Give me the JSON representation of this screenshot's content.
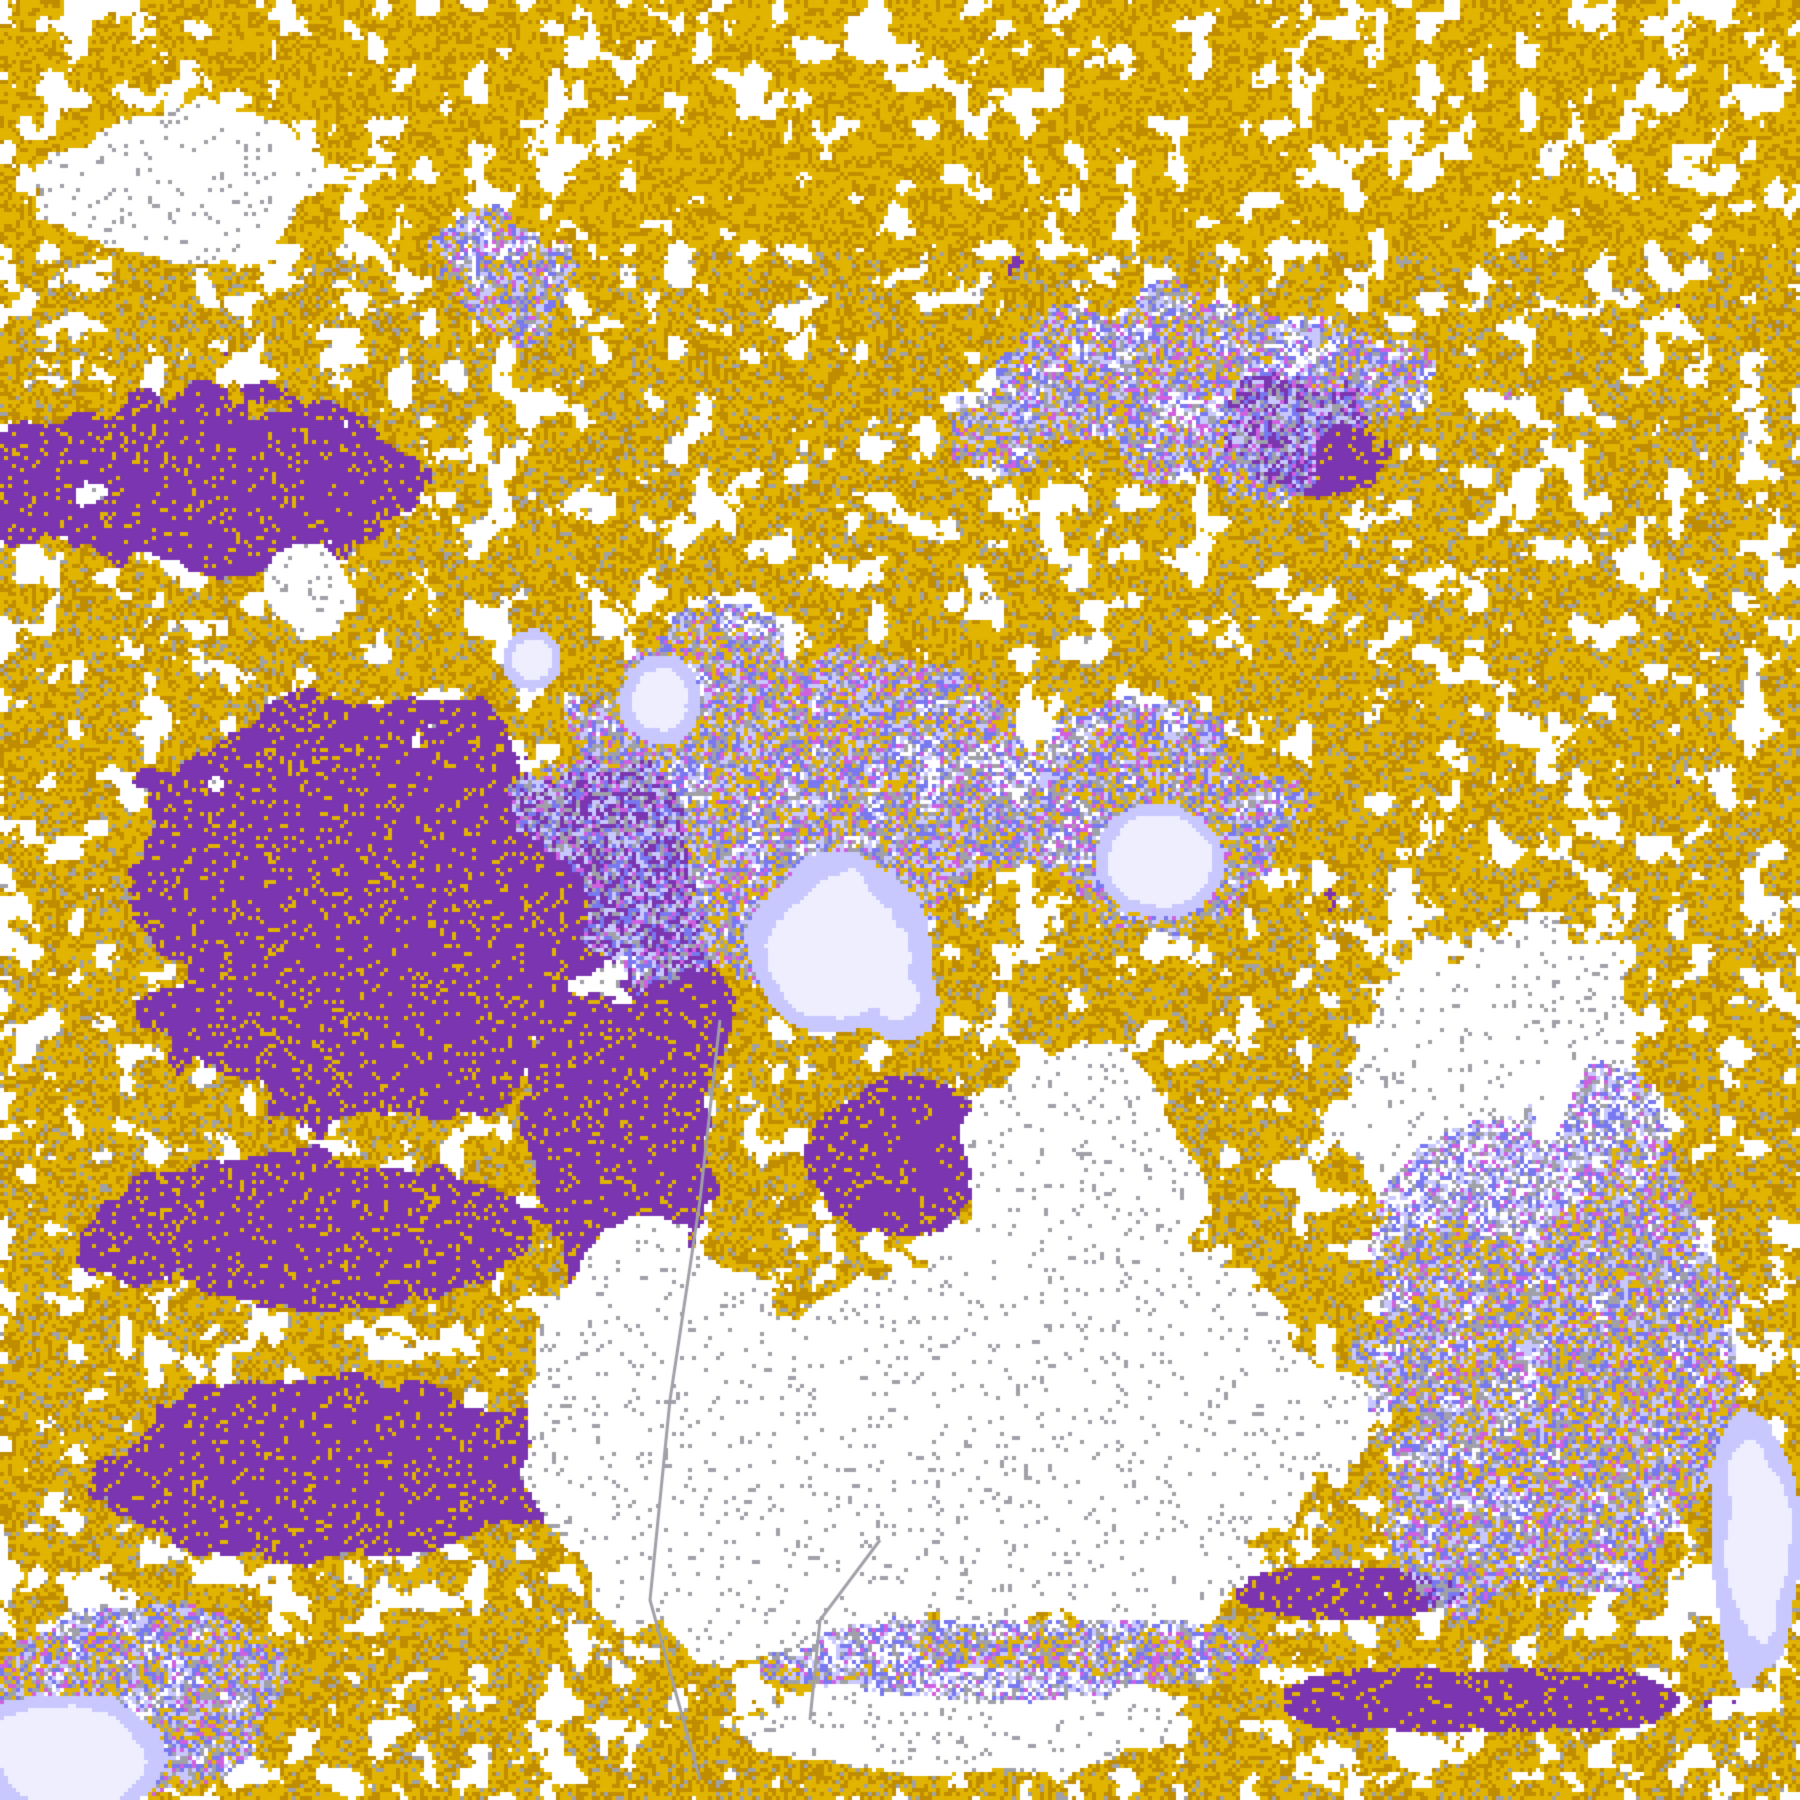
{
  "map": {
    "kind": "satellite cloud classification imagery",
    "palette": {
      "clear": "#FFFFFF",
      "low_cloud_gold": "#E0B400",
      "low_cloud_dark_gold": "#C08C00",
      "mid_cloud_purple": "#7B35B0",
      "thin_cirrus_gray": "#A0A0A8",
      "cirrus_light": "#C8C8FF",
      "cirrus_blue": "#7878F0",
      "magenta": "#D060E0",
      "deep_convection": "#EEEEFF"
    }
  }
}
